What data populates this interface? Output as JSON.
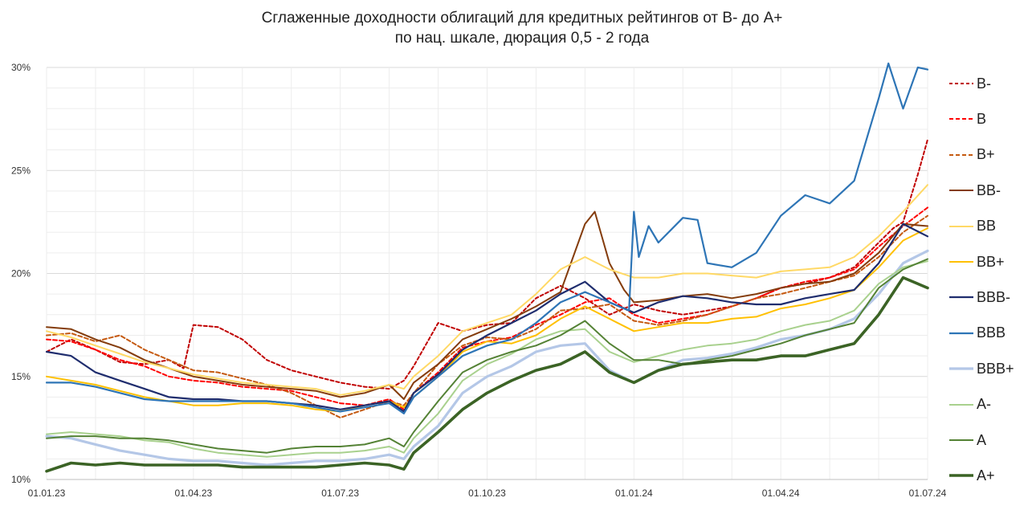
{
  "chart_data": {
    "type": "line",
    "title": "Сглаженные доходности облигаций для кредитных рейтингов от B- до A+",
    "subtitle": "по нац. шкале, дюрация 0,5 - 2 года",
    "y_ticks": [
      "10%",
      "15%",
      "20%",
      "25%",
      "30%"
    ],
    "ylim": [
      10,
      30
    ],
    "x_ticks": [
      {
        "label": "01.01.23",
        "month": 0
      },
      {
        "label": "01.04.23",
        "month": 3
      },
      {
        "label": "01.07.23",
        "month": 6
      },
      {
        "label": "01.10.23",
        "month": 9
      },
      {
        "label": "01.01.24",
        "month": 12
      },
      {
        "label": "01.04.24",
        "month": 15
      },
      {
        "label": "01.07.24",
        "month": 18
      }
    ],
    "xlim": [
      0,
      18
    ],
    "grid": true,
    "legend_position": "right",
    "series": [
      {
        "name": "B-",
        "color": "#c00000",
        "dash": "4,3",
        "width": 2,
        "x": [
          0,
          0.5,
          1,
          1.5,
          2,
          2.5,
          2.8,
          3,
          3.5,
          4,
          4.5,
          5,
          5.5,
          6,
          6.5,
          7,
          7.3,
          7.5,
          8,
          8.5,
          9,
          9.5,
          10,
          10.5,
          11,
          11.5,
          12,
          12.5,
          13,
          13.5,
          14,
          14.5,
          15,
          15.5,
          16,
          16.5,
          17,
          17.3,
          17.5,
          17.8,
          18
        ],
        "y": [
          16.2,
          16.8,
          16.3,
          15.7,
          15.6,
          15.8,
          15.4,
          17.5,
          17.4,
          16.8,
          15.8,
          15.3,
          15.0,
          14.7,
          14.5,
          14.4,
          14.8,
          15.5,
          17.6,
          17.2,
          17.5,
          17.6,
          18.8,
          19.4,
          18.8,
          18.0,
          18.5,
          18.2,
          18.0,
          18.2,
          18.4,
          18.8,
          19.3,
          19.5,
          19.8,
          20.3,
          21.5,
          22.2,
          22.5,
          24.8,
          26.5
        ]
      },
      {
        "name": "B",
        "color": "#ff0000",
        "dash": "5,3",
        "width": 2,
        "x": [
          0,
          0.5,
          1,
          1.5,
          2,
          2.5,
          3,
          3.5,
          4,
          4.5,
          5,
          5.5,
          6,
          6.5,
          7,
          7.3,
          7.5,
          8,
          8.5,
          9,
          9.5,
          10,
          10.5,
          11,
          11.5,
          12,
          12.5,
          13,
          13.5,
          14,
          14.5,
          15,
          15.5,
          16,
          16.5,
          17,
          17.5,
          18
        ],
        "y": [
          16.8,
          16.7,
          16.3,
          15.8,
          15.5,
          15.0,
          14.8,
          14.7,
          14.5,
          14.4,
          14.3,
          14.0,
          13.7,
          13.6,
          13.9,
          13.4,
          14.2,
          15.2,
          16.4,
          16.7,
          16.9,
          17.5,
          18.0,
          18.6,
          18.8,
          18.0,
          17.6,
          17.8,
          18.0,
          18.4,
          18.8,
          19.3,
          19.6,
          19.8,
          20.2,
          21.3,
          22.3,
          23.2
        ]
      },
      {
        "name": "B+",
        "color": "#c55a11",
        "dash": "5,3",
        "width": 2,
        "x": [
          0,
          0.5,
          1,
          1.5,
          2,
          2.5,
          3,
          3.5,
          4,
          4.5,
          5,
          5.5,
          6,
          6.5,
          7,
          7.3,
          7.5,
          8,
          8.5,
          9,
          9.5,
          10,
          10.5,
          11,
          11.5,
          12,
          12.5,
          13,
          13.5,
          14,
          14.5,
          15,
          15.5,
          16,
          16.5,
          17,
          17.5,
          18
        ],
        "y": [
          17.0,
          17.1,
          16.7,
          17.0,
          16.3,
          15.8,
          15.3,
          15.2,
          14.9,
          14.6,
          14.2,
          13.6,
          13.0,
          13.4,
          13.8,
          13.6,
          14.2,
          15.6,
          16.5,
          16.9,
          16.8,
          17.3,
          18.2,
          18.3,
          18.5,
          17.7,
          17.5,
          17.7,
          18.0,
          18.4,
          18.8,
          19.0,
          19.3,
          19.6,
          19.9,
          20.8,
          22.0,
          22.8
        ]
      },
      {
        "name": "BB-",
        "color": "#843c0c",
        "dash": "",
        "width": 2,
        "x": [
          0,
          0.5,
          1,
          1.5,
          2,
          2.5,
          3,
          3.5,
          4,
          4.5,
          5,
          5.5,
          6,
          6.5,
          7,
          7.3,
          7.5,
          8,
          8.5,
          9,
          9.5,
          10,
          10.5,
          11,
          11.2,
          11.5,
          11.8,
          12,
          12.5,
          13,
          13.5,
          14,
          14.5,
          15,
          15.5,
          16,
          16.5,
          17,
          17.5,
          18
        ],
        "y": [
          17.4,
          17.3,
          16.8,
          16.4,
          15.8,
          15.4,
          15.0,
          14.8,
          14.6,
          14.5,
          14.4,
          14.3,
          14.0,
          14.2,
          14.6,
          13.9,
          14.7,
          15.6,
          16.8,
          17.3,
          17.8,
          18.4,
          19.1,
          22.4,
          23.0,
          20.5,
          19.2,
          18.6,
          18.7,
          18.9,
          19.0,
          18.8,
          19.0,
          19.3,
          19.5,
          19.6,
          20.0,
          21.0,
          22.4,
          22.3
        ]
      },
      {
        "name": "BB",
        "color": "#ffd966",
        "dash": "",
        "width": 2,
        "x": [
          0,
          0.5,
          1,
          1.5,
          2,
          2.5,
          3,
          3.5,
          4,
          4.5,
          5,
          5.5,
          6,
          6.5,
          7,
          7.3,
          7.5,
          8,
          8.5,
          9,
          9.5,
          10,
          10.5,
          11,
          11.5,
          12,
          12.5,
          13,
          13.5,
          14,
          14.5,
          15,
          15.5,
          16,
          16.5,
          17,
          17.5,
          18
        ],
        "y": [
          17.2,
          16.9,
          16.5,
          16.1,
          15.7,
          15.4,
          15.1,
          14.9,
          14.7,
          14.6,
          14.5,
          14.4,
          14.1,
          14.3,
          14.6,
          14.4,
          15.0,
          16.0,
          17.2,
          17.6,
          18.0,
          19.0,
          20.2,
          20.8,
          20.2,
          19.8,
          19.8,
          20.0,
          20.0,
          19.9,
          19.8,
          20.1,
          20.2,
          20.3,
          20.8,
          21.8,
          23.0,
          24.3
        ]
      },
      {
        "name": "BB+",
        "color": "#ffc000",
        "dash": "",
        "width": 2,
        "x": [
          0,
          0.5,
          1,
          1.5,
          2,
          2.5,
          3,
          3.5,
          4,
          4.5,
          5,
          5.5,
          6,
          6.5,
          7,
          7.3,
          7.5,
          8,
          8.5,
          9,
          9.5,
          10,
          10.5,
          11,
          11.5,
          12,
          12.5,
          13,
          13.5,
          14,
          14.5,
          15,
          15.5,
          16,
          16.5,
          17,
          17.5,
          18
        ],
        "y": [
          15.0,
          14.8,
          14.6,
          14.3,
          14.0,
          13.8,
          13.6,
          13.6,
          13.7,
          13.7,
          13.6,
          13.4,
          13.3,
          13.6,
          13.8,
          13.5,
          14.0,
          15.0,
          16.2,
          16.7,
          16.6,
          17.0,
          17.8,
          18.4,
          17.8,
          17.2,
          17.4,
          17.6,
          17.6,
          17.8,
          17.9,
          18.3,
          18.5,
          18.8,
          19.2,
          20.3,
          21.6,
          22.2
        ]
      },
      {
        "name": "BBB-",
        "color": "#1f2d6e",
        "dash": "",
        "width": 2.2,
        "x": [
          0,
          0.5,
          1,
          1.5,
          2,
          2.5,
          3,
          3.5,
          4,
          4.5,
          5,
          5.5,
          6,
          6.5,
          7,
          7.3,
          7.5,
          8,
          8.5,
          9,
          9.5,
          10,
          10.5,
          11,
          11.5,
          12,
          12.5,
          13,
          13.5,
          14,
          14.5,
          15,
          15.5,
          16,
          16.5,
          17,
          17.5,
          18
        ],
        "y": [
          16.2,
          16.0,
          15.2,
          14.8,
          14.4,
          14.0,
          13.9,
          13.9,
          13.8,
          13.8,
          13.7,
          13.6,
          13.4,
          13.6,
          13.8,
          13.3,
          14.2,
          15.1,
          16.3,
          17.0,
          17.6,
          18.2,
          19.0,
          19.6,
          18.6,
          18.1,
          18.6,
          18.9,
          18.8,
          18.6,
          18.5,
          18.5,
          18.8,
          19.0,
          19.2,
          20.5,
          22.4,
          21.8
        ]
      },
      {
        "name": "BBB",
        "color": "#2e75b6",
        "dash": "",
        "width": 2.2,
        "x": [
          0,
          0.5,
          1,
          1.5,
          2,
          2.5,
          3,
          3.5,
          4,
          4.5,
          5,
          5.5,
          6,
          6.5,
          7,
          7.3,
          7.5,
          8,
          8.5,
          9,
          9.5,
          10,
          10.5,
          11,
          11.5,
          11.9,
          12.0,
          12.1,
          12.3,
          12.5,
          13,
          13.3,
          13.5,
          14,
          14.5,
          15,
          15.5,
          16,
          16.5,
          17,
          17.2,
          17.5,
          17.8,
          18
        ],
        "y": [
          14.7,
          14.7,
          14.5,
          14.2,
          13.9,
          13.8,
          13.8,
          13.8,
          13.8,
          13.8,
          13.7,
          13.5,
          13.3,
          13.5,
          13.7,
          13.2,
          14.0,
          15.0,
          16.0,
          16.5,
          16.8,
          17.6,
          18.6,
          19.1,
          18.6,
          18.2,
          23.0,
          20.8,
          22.3,
          21.5,
          22.7,
          22.6,
          20.5,
          20.3,
          21.0,
          22.8,
          23.8,
          23.4,
          24.5,
          28.5,
          30.2,
          28.0,
          30.0,
          29.9
        ]
      },
      {
        "name": "BBB+",
        "color": "#b4c7e7",
        "dash": "",
        "width": 3.2,
        "x": [
          0,
          0.5,
          1,
          1.5,
          2,
          2.5,
          3,
          3.5,
          4,
          4.5,
          5,
          5.5,
          6,
          6.5,
          7,
          7.3,
          7.5,
          8,
          8.5,
          9,
          9.5,
          10,
          10.5,
          11,
          11.5,
          12,
          12.5,
          13,
          13.5,
          14,
          14.5,
          15,
          15.5,
          16,
          16.5,
          17,
          17.5,
          18
        ],
        "y": [
          12.1,
          12.0,
          11.7,
          11.4,
          11.2,
          11.0,
          10.9,
          10.9,
          10.8,
          10.7,
          10.8,
          10.9,
          10.9,
          11.0,
          11.2,
          11.0,
          11.6,
          12.6,
          14.2,
          15.0,
          15.5,
          16.2,
          16.5,
          16.6,
          15.3,
          14.7,
          15.3,
          15.8,
          15.9,
          16.1,
          16.4,
          16.8,
          17.0,
          17.3,
          17.8,
          19.0,
          20.5,
          21.1
        ]
      },
      {
        "name": "A-",
        "color": "#a9d18e",
        "dash": "",
        "width": 2,
        "x": [
          0,
          0.5,
          1,
          1.5,
          2,
          2.5,
          3,
          3.5,
          4,
          4.5,
          5,
          5.5,
          6,
          6.5,
          7,
          7.3,
          7.5,
          8,
          8.5,
          9,
          9.5,
          10,
          10.5,
          11,
          11.5,
          12,
          12.5,
          13,
          13.5,
          14,
          14.5,
          15,
          15.5,
          16,
          16.5,
          17,
          17.5,
          18
        ],
        "y": [
          12.2,
          12.3,
          12.2,
          12.1,
          11.9,
          11.8,
          11.5,
          11.3,
          11.2,
          11.1,
          11.2,
          11.3,
          11.3,
          11.4,
          11.6,
          11.3,
          12.0,
          13.2,
          14.8,
          15.6,
          16.1,
          16.8,
          17.2,
          17.3,
          16.2,
          15.7,
          16.0,
          16.3,
          16.5,
          16.6,
          16.8,
          17.2,
          17.5,
          17.7,
          18.2,
          19.5,
          20.3,
          20.6
        ]
      },
      {
        "name": "A",
        "color": "#548235",
        "dash": "",
        "width": 2,
        "x": [
          0,
          0.5,
          1,
          1.5,
          2,
          2.5,
          3,
          3.5,
          4,
          4.5,
          5,
          5.5,
          6,
          6.5,
          7,
          7.3,
          7.5,
          8,
          8.5,
          9,
          9.5,
          10,
          10.5,
          11,
          11.5,
          12,
          12.5,
          13,
          13.5,
          14,
          14.5,
          15,
          15.5,
          16,
          16.5,
          17,
          17.5,
          18
        ],
        "y": [
          12.0,
          12.1,
          12.1,
          12.0,
          12.0,
          11.9,
          11.7,
          11.5,
          11.4,
          11.3,
          11.5,
          11.6,
          11.6,
          11.7,
          12.0,
          11.6,
          12.3,
          13.8,
          15.2,
          15.8,
          16.2,
          16.5,
          17.0,
          17.7,
          16.6,
          15.8,
          15.8,
          15.6,
          15.8,
          16.0,
          16.3,
          16.6,
          17.0,
          17.3,
          17.6,
          19.3,
          20.2,
          20.7
        ]
      },
      {
        "name": "A+",
        "color": "#3b6325",
        "dash": "",
        "width": 3.6,
        "x": [
          0,
          0.5,
          1,
          1.5,
          2,
          2.5,
          3,
          3.5,
          4,
          4.5,
          5,
          5.5,
          6,
          6.5,
          7,
          7.3,
          7.5,
          8,
          8.5,
          9,
          9.5,
          10,
          10.5,
          11,
          11.5,
          12,
          12.5,
          13,
          13.5,
          14,
          14.5,
          15,
          15.5,
          16,
          16.5,
          17,
          17.5,
          18
        ],
        "y": [
          10.4,
          10.8,
          10.7,
          10.8,
          10.7,
          10.7,
          10.7,
          10.7,
          10.6,
          10.6,
          10.6,
          10.6,
          10.7,
          10.8,
          10.7,
          10.5,
          11.3,
          12.3,
          13.4,
          14.2,
          14.8,
          15.3,
          15.6,
          16.2,
          15.2,
          14.7,
          15.3,
          15.6,
          15.7,
          15.8,
          15.8,
          16.0,
          16.0,
          16.3,
          16.6,
          18.0,
          19.8,
          19.3
        ]
      }
    ]
  }
}
